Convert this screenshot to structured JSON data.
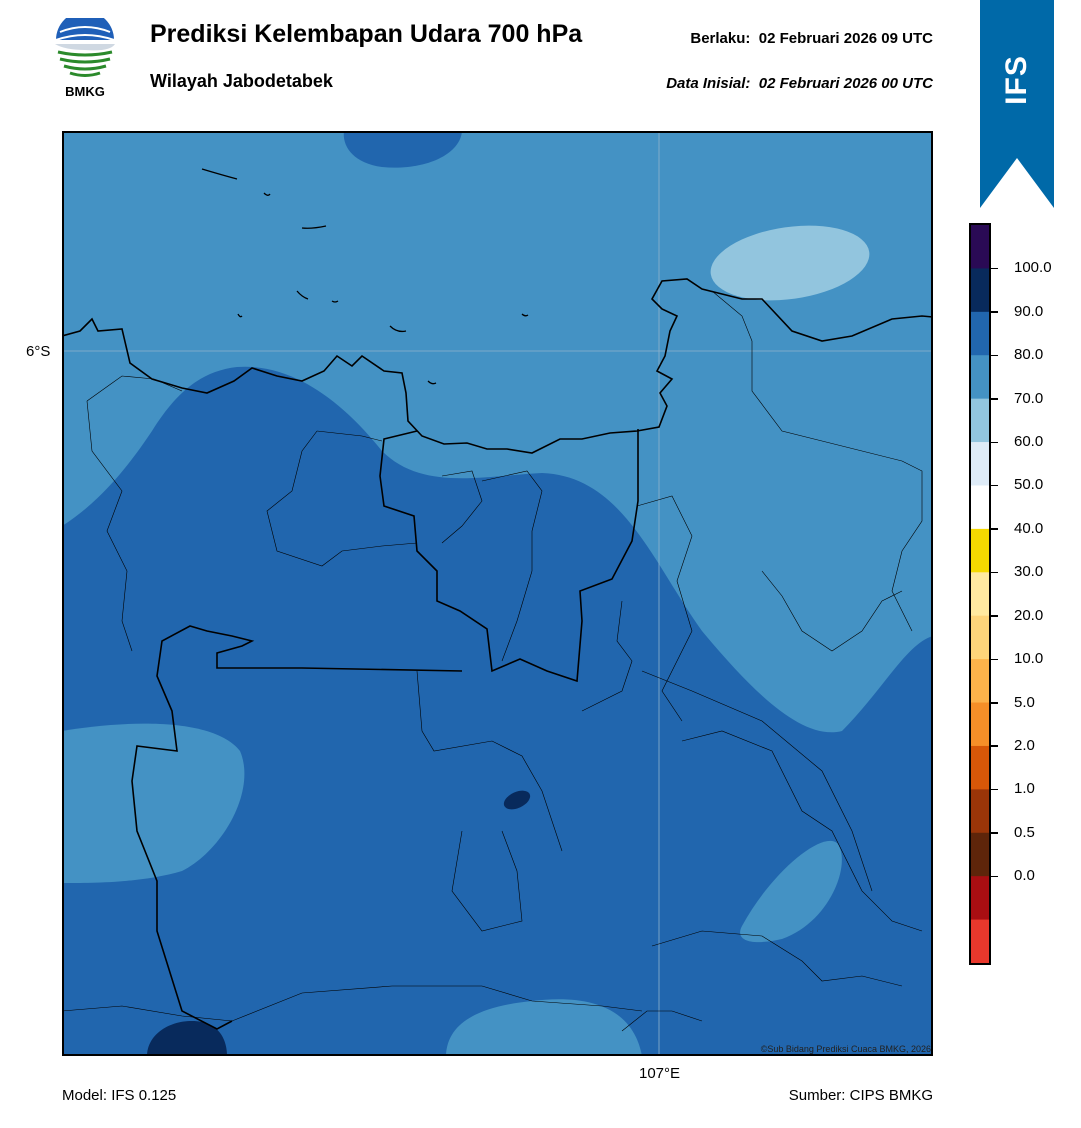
{
  "header": {
    "title": "Prediksi Kelembapan Udara 700 hPa",
    "subtitle": "Wilayah Jabodetabek",
    "valid_label": "Berlaku:",
    "valid_time": "02 Februari 2026 09 UTC",
    "init_label": "Data Inisial:",
    "init_time": "02 Februari 2026 00 UTC"
  },
  "logo": {
    "text": "BMKG",
    "icon": "bmkg-logo-icon"
  },
  "banner": {
    "text": "IFS",
    "color": "#0069a8"
  },
  "map": {
    "lat_label": "6°S",
    "lon_label": "107°E",
    "copyright": "©Sub Bidang Prediksi Cuaca BMKG, 2026"
  },
  "footer": {
    "model": "Model: IFS 0.125",
    "source": "Sumber: CIPS BMKG"
  },
  "colorbar": {
    "colors": [
      "#2a0a55",
      "#082a5c",
      "#2166ae",
      "#4492c4",
      "#92c5de",
      "#deebf7",
      "#ffffff",
      "#f5d900",
      "#ffe9a0",
      "#fdd47a",
      "#fcb24a",
      "#f68f28",
      "#d75708",
      "#9a3508",
      "#5e250a",
      "#a90e12",
      "#e8382c"
    ],
    "labels": [
      "100.0",
      "90.0",
      "80.0",
      "70.0",
      "60.0",
      "50.0",
      "40.0",
      "30.0",
      "20.0",
      "10.0",
      "5.0",
      "2.0",
      "1.0",
      "0.5",
      "0.0"
    ]
  }
}
